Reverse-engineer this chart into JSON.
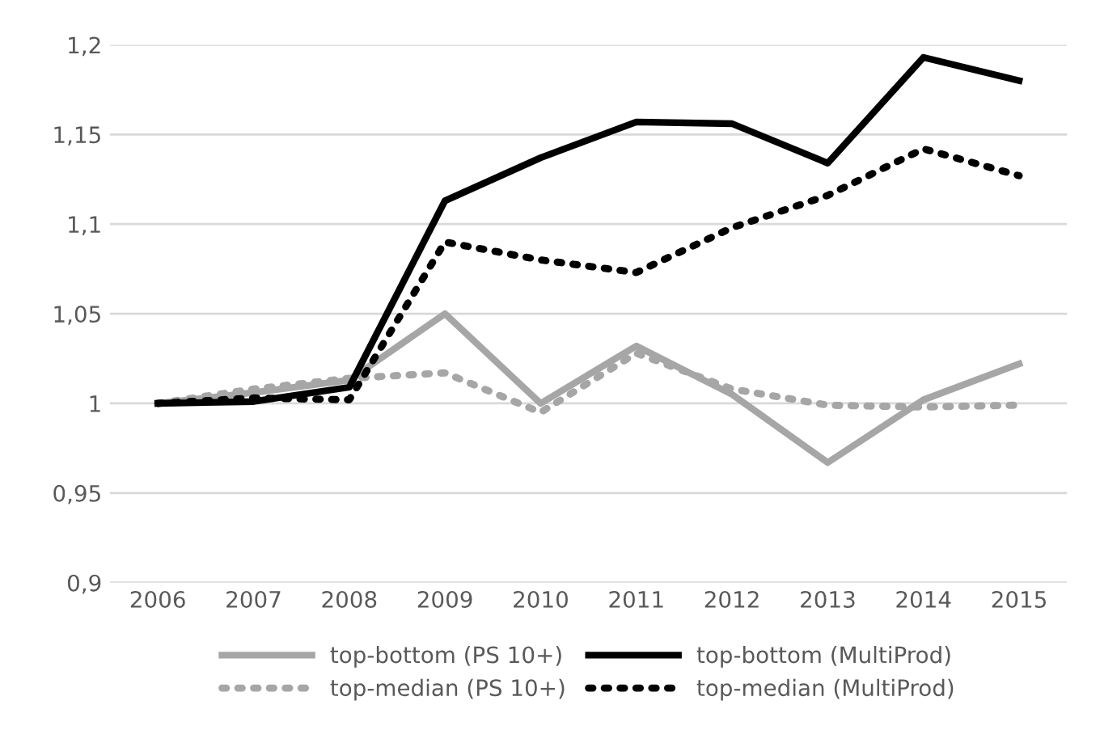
{
  "chart_data": {
    "type": "line",
    "categories": [
      "2006",
      "2007",
      "2008",
      "2009",
      "2010",
      "2011",
      "2012",
      "2013",
      "2014",
      "2015"
    ],
    "series": [
      {
        "name": "top-bottom (PS 10+)",
        "color": "#a6a6a6",
        "line_style": "solid",
        "values": [
          1.0,
          1.006,
          1.013,
          1.05,
          1.0,
          1.032,
          1.005,
          0.967,
          1.002,
          1.022
        ]
      },
      {
        "name": "top-median (PS 10+)",
        "color": "#a6a6a6",
        "line_style": "dotted",
        "values": [
          1.0,
          1.008,
          1.014,
          1.017,
          0.995,
          1.028,
          1.008,
          0.999,
          0.998,
          0.999
        ]
      },
      {
        "name": "top-bottom (MultiProd)",
        "color": "#000000",
        "line_style": "solid",
        "values": [
          1.0,
          1.001,
          1.009,
          1.113,
          1.137,
          1.157,
          1.156,
          1.134,
          1.193,
          1.18
        ]
      },
      {
        "name": "top-median (MultiProd)",
        "color": "#000000",
        "line_style": "dotted",
        "values": [
          1.0,
          1.003,
          1.002,
          1.09,
          1.08,
          1.073,
          1.098,
          1.116,
          1.142,
          1.127
        ]
      }
    ],
    "ylim": [
      0.9,
      1.2
    ],
    "yticks": [
      {
        "value": 0.9,
        "label": "0,9"
      },
      {
        "value": 0.95,
        "label": "0,95"
      },
      {
        "value": 1,
        "label": "1"
      },
      {
        "value": 1.05,
        "label": "1,05"
      },
      {
        "value": 1.1,
        "label": "1,1"
      },
      {
        "value": 1.15,
        "label": "1,15"
      },
      {
        "value": 1.2,
        "label": "1,2"
      }
    ],
    "grid": "y",
    "legend": "bottom",
    "marker": "none"
  }
}
